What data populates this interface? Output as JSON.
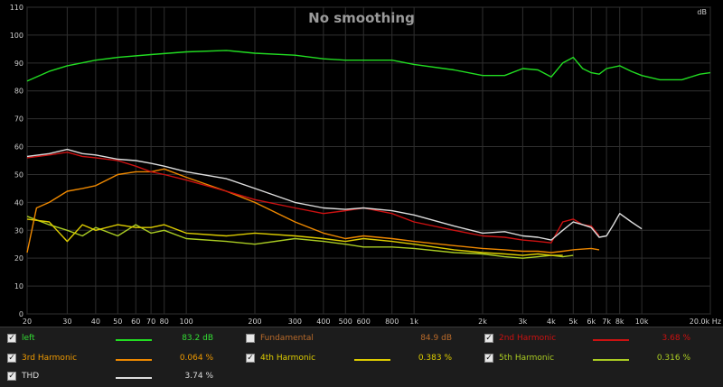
{
  "chart_data": {
    "type": "line",
    "title": "No smoothing",
    "ylabel": "dB",
    "xscale": "log",
    "xlim": [
      20,
      20000
    ],
    "ylim": [
      0,
      110
    ],
    "grid": true,
    "y_ticks": [
      "0",
      "10",
      "20",
      "30",
      "40",
      "50",
      "60",
      "70",
      "80",
      "90",
      "100",
      "110"
    ],
    "x_ticks": [
      {
        "v": 20,
        "label": "20"
      },
      {
        "v": 30,
        "label": "30"
      },
      {
        "v": 40,
        "label": "40"
      },
      {
        "v": 50,
        "label": "50"
      },
      {
        "v": 60,
        "label": "60"
      },
      {
        "v": 70,
        "label": "70"
      },
      {
        "v": 80,
        "label": "80"
      },
      {
        "v": 100,
        "label": "100"
      },
      {
        "v": 200,
        "label": "200"
      },
      {
        "v": 300,
        "label": "300"
      },
      {
        "v": 400,
        "label": "400"
      },
      {
        "v": 500,
        "label": "500"
      },
      {
        "v": 600,
        "label": "600"
      },
      {
        "v": 800,
        "label": "800"
      },
      {
        "v": 1000,
        "label": "1k"
      },
      {
        "v": 2000,
        "label": "2k"
      },
      {
        "v": 3000,
        "label": "3k"
      },
      {
        "v": 4000,
        "label": "4k"
      },
      {
        "v": 5000,
        "label": "5k"
      },
      {
        "v": 6000,
        "label": "6k"
      },
      {
        "v": 7000,
        "label": "7k"
      },
      {
        "v": 8000,
        "label": "8k"
      },
      {
        "v": 10000,
        "label": "10k"
      },
      {
        "v": 20000,
        "label": "20.0k Hz"
      }
    ],
    "series": [
      {
        "key": "left",
        "color": "#22dd22",
        "x": [
          20,
          25,
          30,
          40,
          50,
          70,
          100,
          150,
          200,
          300,
          400,
          500,
          600,
          800,
          1000,
          1500,
          2000,
          2500,
          3000,
          3500,
          4000,
          4500,
          5000,
          5500,
          6000,
          6500,
          7000,
          8000,
          9000,
          10000,
          12000,
          15000,
          18000,
          20000
        ],
        "y": [
          83.5,
          87,
          89,
          91,
          92,
          93,
          94,
          94.5,
          93.5,
          92.8,
          91.5,
          91,
          91,
          91,
          89.5,
          87.5,
          85.5,
          85.5,
          88,
          87.5,
          85,
          90,
          92,
          88,
          86.5,
          86,
          88,
          89,
          87,
          85.5,
          84,
          84,
          86,
          86.5
        ]
      },
      {
        "key": "thd",
        "color": "#dddddd",
        "x": [
          20,
          25,
          30,
          35,
          40,
          50,
          60,
          70,
          80,
          100,
          150,
          200,
          300,
          400,
          500,
          600,
          800,
          1000,
          1500,
          2000,
          2500,
          3000,
          3500,
          4000,
          4500,
          5000,
          5500,
          6000,
          6500,
          7000,
          7500,
          8000,
          9000,
          10000
        ],
        "y": [
          56.5,
          57.5,
          59,
          57.5,
          57,
          55.5,
          55,
          54,
          53,
          51,
          48.5,
          45,
          40,
          38,
          37.5,
          38,
          37,
          35.5,
          31.5,
          29,
          29.5,
          28,
          27.5,
          26.5,
          30,
          33,
          32,
          31,
          27.5,
          28,
          32,
          36,
          33,
          30.5
        ]
      },
      {
        "key": "h2",
        "color": "#cc1111",
        "x": [
          20,
          25,
          30,
          35,
          40,
          50,
          60,
          70,
          80,
          100,
          150,
          200,
          300,
          400,
          500,
          600,
          800,
          1000,
          1500,
          2000,
          2500,
          3000,
          3500,
          4000,
          4500,
          5000,
          5500,
          6000,
          6500
        ],
        "y": [
          56,
          57,
          58,
          56.5,
          56,
          55,
          53,
          51,
          50,
          48,
          44,
          41,
          38,
          36,
          37,
          38,
          36,
          33,
          30,
          28,
          27.5,
          26.5,
          26,
          25.5,
          33,
          34,
          32,
          31.5,
          28
        ]
      },
      {
        "key": "h3",
        "color": "#ee8800",
        "x": [
          20,
          22,
          25,
          30,
          35,
          40,
          50,
          60,
          70,
          80,
          100,
          150,
          200,
          300,
          400,
          500,
          600,
          800,
          1000,
          1500,
          2000,
          2500,
          3000,
          3500,
          4000,
          4500,
          5000,
          6000,
          6500
        ],
        "y": [
          22,
          38,
          40,
          44,
          45,
          46,
          50,
          51,
          51,
          52,
          49,
          44,
          40,
          33,
          29,
          27,
          28,
          27,
          26,
          24.5,
          23.5,
          23,
          22.5,
          22.5,
          22,
          22.5,
          23,
          23.5,
          23
        ]
      },
      {
        "key": "h4",
        "color": "#ddcc00",
        "x": [
          20,
          25,
          30,
          35,
          40,
          50,
          60,
          70,
          80,
          100,
          150,
          200,
          300,
          400,
          500,
          600,
          800,
          1000,
          1500,
          2000,
          2500,
          3000,
          3500,
          4000,
          4500
        ],
        "y": [
          34,
          33,
          26,
          32,
          30,
          32,
          31,
          31,
          32,
          29,
          28,
          29,
          28,
          27,
          26,
          27,
          26,
          25,
          23,
          22,
          21.5,
          21,
          21.5,
          21,
          21
        ]
      },
      {
        "key": "h5",
        "color": "#aacc22",
        "x": [
          20,
          25,
          30,
          35,
          40,
          50,
          60,
          70,
          80,
          100,
          150,
          200,
          300,
          400,
          500,
          600,
          800,
          1000,
          1500,
          2000,
          2500,
          3000,
          3500,
          4000,
          4500,
          5000
        ],
        "y": [
          35,
          32,
          30,
          28,
          31,
          28,
          32,
          29,
          30,
          27,
          26,
          25,
          27,
          26,
          25,
          24,
          24,
          23.5,
          22,
          21.5,
          20.5,
          20,
          20.5,
          21,
          20.5,
          21
        ]
      }
    ]
  },
  "legend": [
    {
      "key": "left",
      "name": "left",
      "value": "83.2 dB",
      "checked": true,
      "text_color": "#33dd33",
      "value_color": "#33dd33",
      "swatch": "#22dd22"
    },
    {
      "key": "fundamental",
      "name": "Fundamental",
      "value": "84.9 dB",
      "checked": false,
      "text_color": "#b86a2a",
      "value_color": "#b86a2a",
      "swatch": ""
    },
    {
      "key": "h2",
      "name": "2nd Harmonic",
      "value": "3.68 %",
      "checked": true,
      "text_color": "#cc1111",
      "value_color": "#cc1111",
      "swatch": "#cc1111"
    },
    {
      "key": "h3",
      "name": "3rd Harmonic",
      "value": "0.064 %",
      "checked": true,
      "text_color": "#ee9900",
      "value_color": "#ee9900",
      "swatch": "#ee8800"
    },
    {
      "key": "h4",
      "name": "4th Harmonic",
      "value": "0.383 %",
      "checked": true,
      "text_color": "#ddcc00",
      "value_color": "#ddcc00",
      "swatch": "#ddcc00"
    },
    {
      "key": "h5",
      "name": "5th Harmonic",
      "value": "0.316 %",
      "checked": true,
      "text_color": "#aacc22",
      "value_color": "#aacc22",
      "swatch": "#aacc22"
    },
    {
      "key": "thd",
      "name": "THD",
      "value": "3.74 %",
      "checked": true,
      "text_color": "#dddddd",
      "value_color": "#dddddd",
      "swatch": "#dddddd"
    }
  ]
}
